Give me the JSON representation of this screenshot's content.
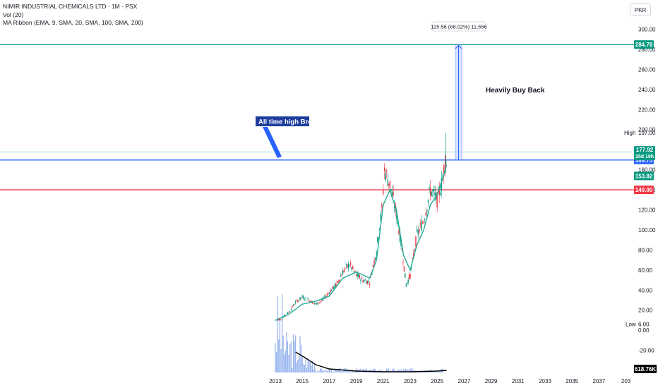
{
  "legend": {
    "symbol_line": "NIMIR INDUSTRIAL CHEMICALS LTD · 1M · PSX",
    "volume_line": "Vol (20)",
    "ma_line": "MA Ribbon (EMA, 9, SMA, 20, SMA, 100, SMA, 200)"
  },
  "currency": "PKR",
  "chart_data": {
    "type": "candlestick",
    "x_labels": [
      "2013",
      "2015",
      "2017",
      "2019",
      "2021",
      "2023",
      "2025",
      "2027",
      "2029",
      "2031",
      "2033",
      "2035",
      "2037",
      "203"
    ],
    "y_ticks": [
      "300.00",
      "280.00",
      "260.00",
      "240.00",
      "220.00",
      "200.00",
      "180.00",
      "160.00",
      "140.00",
      "120.00",
      "100.00",
      "80.00",
      "60.00",
      "40.00",
      "20.00",
      "0.00",
      "-20.00"
    ],
    "ylim": [
      -28,
      306
    ],
    "price_path": [
      [
        2013.0,
        10
      ],
      [
        2013.5,
        12
      ],
      [
        2014.0,
        18
      ],
      [
        2014.5,
        28
      ],
      [
        2015.0,
        33
      ],
      [
        2015.5,
        30
      ],
      [
        2016.0,
        26
      ],
      [
        2016.5,
        30
      ],
      [
        2017.0,
        38
      ],
      [
        2017.5,
        45
      ],
      [
        2018.0,
        58
      ],
      [
        2018.5,
        66
      ],
      [
        2019.0,
        55
      ],
      [
        2019.5,
        50
      ],
      [
        2020.0,
        48
      ],
      [
        2020.5,
        80
      ],
      [
        2020.9,
        120
      ],
      [
        2021.1,
        160
      ],
      [
        2021.5,
        145
      ],
      [
        2022.0,
        115
      ],
      [
        2022.4,
        80
      ],
      [
        2022.7,
        45
      ],
      [
        2023.0,
        55
      ],
      [
        2023.5,
        95
      ],
      [
        2024.0,
        110
      ],
      [
        2024.5,
        140
      ],
      [
        2025.0,
        130
      ],
      [
        2025.4,
        150
      ],
      [
        2025.6,
        170
      ],
      [
        2025.7,
        178
      ]
    ],
    "ma_path": [
      [
        2013.0,
        10
      ],
      [
        2014.0,
        16
      ],
      [
        2015.0,
        26
      ],
      [
        2016.0,
        29
      ],
      [
        2017.0,
        34
      ],
      [
        2018.0,
        52
      ],
      [
        2019.0,
        58
      ],
      [
        2020.0,
        52
      ],
      [
        2020.5,
        70
      ],
      [
        2021.0,
        125
      ],
      [
        2021.5,
        140
      ],
      [
        2022.0,
        118
      ],
      [
        2022.5,
        75
      ],
      [
        2023.0,
        60
      ],
      [
        2023.5,
        85
      ],
      [
        2024.0,
        100
      ],
      [
        2024.5,
        125
      ],
      [
        2025.0,
        135
      ],
      [
        2025.5,
        155
      ],
      [
        2025.7,
        165
      ]
    ],
    "volume_note": "618.76K",
    "horizontal_levels": [
      {
        "price": 284.78,
        "label": "284.78",
        "color": "#089981"
      },
      {
        "price": 169.75,
        "label": "169.75",
        "color": "#2962ff"
      },
      {
        "price": 140.0,
        "label": "140.00",
        "color": "#f23645"
      }
    ],
    "last_price": {
      "value": "177.92",
      "countdown": "25d 19h",
      "color": "#089981"
    },
    "ma_value": {
      "value": "153.82",
      "color": "#089981"
    },
    "high": {
      "label": "High",
      "value": "197.00"
    },
    "low": {
      "label": "Low",
      "value": "6.00"
    },
    "measure_label": "115.56 (68.02%) 11,556",
    "annotations": {
      "all_time_high": "All time high Broke.",
      "buy_back": "Heavily Buy Back"
    }
  }
}
